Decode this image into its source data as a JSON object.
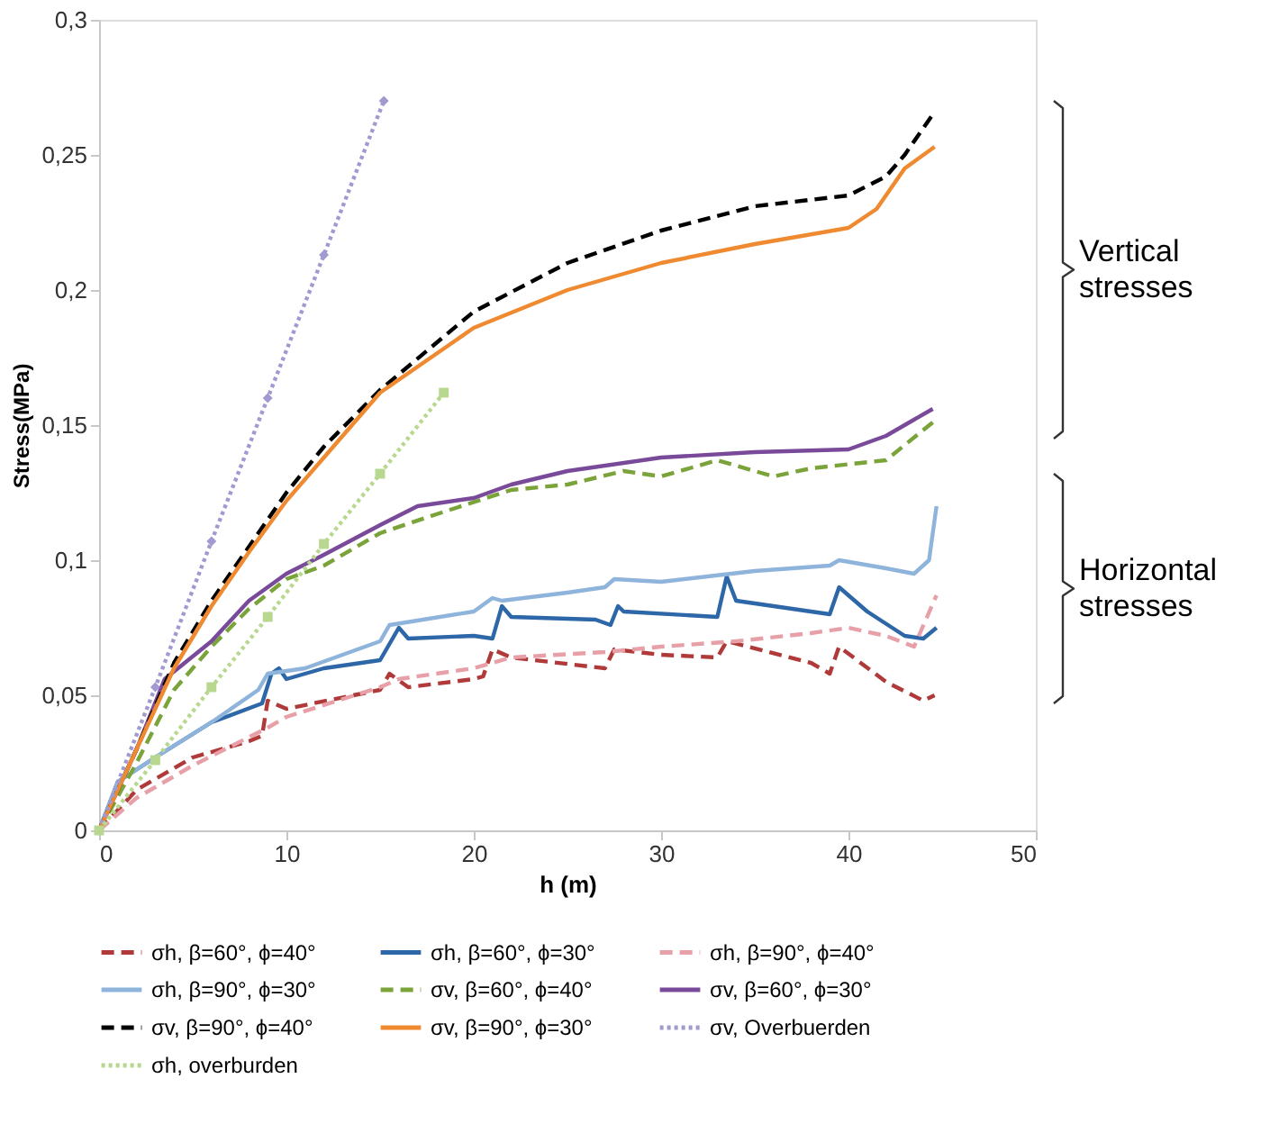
{
  "chart_data": {
    "type": "line",
    "xlabel": "h (m)",
    "ylabel": "Stress(MPa)",
    "xlim": [
      0,
      50
    ],
    "xticks": [
      0,
      10,
      20,
      30,
      40,
      50
    ],
    "ylim": [
      0,
      0.3
    ],
    "yticks": [
      {
        "value": 0,
        "label": "0"
      },
      {
        "value": 0.05,
        "label": "0,05"
      },
      {
        "value": 0.1,
        "label": "0,1"
      },
      {
        "value": 0.15,
        "label": "0,15"
      },
      {
        "value": 0.2,
        "label": "0,2"
      },
      {
        "value": 0.25,
        "label": "0,25"
      },
      {
        "value": 0.3,
        "label": "0,3"
      }
    ],
    "grid": false,
    "legend": "bottom",
    "annotations": [
      "Vertical stresses",
      "Horizontal stresses"
    ],
    "series": [
      {
        "name": "σh, β=60°, ϕ=40°",
        "color": "#b03a3a",
        "line_style": "dashed",
        "x": [
          0,
          2,
          5,
          8,
          8.7,
          9,
          10,
          15,
          15.5,
          16.5,
          20,
          20.5,
          21,
          22,
          27,
          27.5,
          30,
          33,
          33.5,
          38,
          39,
          39.5,
          42,
          44,
          44.6
        ],
        "values": [
          0,
          0.015,
          0.027,
          0.033,
          0.035,
          0.048,
          0.045,
          0.052,
          0.058,
          0.053,
          0.056,
          0.057,
          0.067,
          0.064,
          0.06,
          0.067,
          0.065,
          0.064,
          0.07,
          0.062,
          0.058,
          0.068,
          0.055,
          0.048,
          0.05
        ]
      },
      {
        "name": "σh, β=60°, ϕ=30°",
        "color": "#2e67a8",
        "line_style": "solid",
        "x": [
          0,
          1,
          3,
          6,
          8.7,
          9.2,
          9.6,
          10,
          12,
          15,
          16,
          16.5,
          20,
          21,
          21.5,
          22,
          26.5,
          27.3,
          27.7,
          28,
          33,
          33.5,
          34,
          39,
          39.5,
          41,
          43,
          44,
          44.7
        ],
        "values": [
          0,
          0.018,
          0.027,
          0.04,
          0.047,
          0.058,
          0.06,
          0.056,
          0.06,
          0.063,
          0.075,
          0.071,
          0.072,
          0.071,
          0.083,
          0.079,
          0.078,
          0.076,
          0.083,
          0.081,
          0.079,
          0.094,
          0.085,
          0.08,
          0.09,
          0.081,
          0.072,
          0.071,
          0.075
        ]
      },
      {
        "name": "σh, β=90°, ϕ=40°",
        "color": "#e8a0a8",
        "line_style": "dashed",
        "x": [
          0,
          2,
          5,
          9,
          10,
          15,
          16,
          20,
          22,
          27,
          30,
          34,
          38,
          40,
          42,
          43.5,
          44.7
        ],
        "values": [
          0,
          0.012,
          0.024,
          0.038,
          0.042,
          0.053,
          0.056,
          0.06,
          0.064,
          0.066,
          0.068,
          0.07,
          0.073,
          0.075,
          0.072,
          0.068,
          0.087
        ]
      },
      {
        "name": "σh, β=90°, ϕ=30°",
        "color": "#8fb4dc",
        "line_style": "solid",
        "x": [
          0,
          1,
          3,
          6,
          8.5,
          9,
          11,
          15,
          15.5,
          20,
          21,
          21.5,
          25,
          27,
          27.5,
          30,
          35,
          39,
          39.5,
          42,
          43.5,
          44.3,
          44.7
        ],
        "values": [
          0,
          0.018,
          0.027,
          0.04,
          0.052,
          0.058,
          0.06,
          0.07,
          0.076,
          0.081,
          0.086,
          0.085,
          0.088,
          0.09,
          0.093,
          0.092,
          0.096,
          0.098,
          0.1,
          0.097,
          0.095,
          0.1,
          0.12
        ]
      },
      {
        "name": "σv, β=60°, ϕ=40°",
        "color": "#7aa43a",
        "line_style": "dashed",
        "x": [
          0,
          2,
          4,
          6,
          8,
          10,
          12,
          15,
          18,
          22,
          25,
          28,
          30,
          33,
          36,
          38,
          42,
          44.5
        ],
        "values": [
          0,
          0.025,
          0.052,
          0.068,
          0.082,
          0.093,
          0.098,
          0.11,
          0.117,
          0.126,
          0.128,
          0.133,
          0.131,
          0.137,
          0.131,
          0.134,
          0.137,
          0.151
        ]
      },
      {
        "name": "σv, β=60°, ϕ=30°",
        "color": "#7a4a9a",
        "line_style": "solid",
        "x": [
          0,
          2,
          3.5,
          6,
          8,
          10,
          12,
          15,
          17,
          20,
          22,
          25,
          30,
          35,
          40,
          42,
          44.5
        ],
        "values": [
          0,
          0.03,
          0.056,
          0.07,
          0.085,
          0.095,
          0.102,
          0.113,
          0.12,
          0.123,
          0.128,
          0.133,
          0.138,
          0.14,
          0.141,
          0.146,
          0.156
        ]
      },
      {
        "name": "σv, β=90°, ϕ=40°",
        "color": "#000000",
        "line_style": "dashed",
        "x": [
          0,
          2,
          4,
          6,
          8,
          10,
          12,
          15,
          20,
          25,
          30,
          35,
          40,
          42,
          43,
          44.5
        ],
        "values": [
          0,
          0.03,
          0.062,
          0.085,
          0.105,
          0.125,
          0.142,
          0.163,
          0.192,
          0.21,
          0.222,
          0.231,
          0.235,
          0.242,
          0.25,
          0.265
        ]
      },
      {
        "name": "σv, β=90°, ϕ=30°",
        "color": "#f08a30",
        "line_style": "solid",
        "x": [
          0,
          2,
          4,
          6,
          8,
          10,
          12,
          15,
          20,
          25,
          30,
          35,
          40,
          41.5,
          43,
          44.6
        ],
        "values": [
          0,
          0.03,
          0.06,
          0.083,
          0.103,
          0.122,
          0.138,
          0.162,
          0.186,
          0.2,
          0.21,
          0.217,
          0.223,
          0.23,
          0.245,
          0.253
        ]
      },
      {
        "name": "σv, Overbuerden",
        "color": "#a09ad0",
        "line_style": "dotted",
        "marker": "diamond",
        "x": [
          0,
          3,
          6,
          9,
          12,
          15.2
        ],
        "values": [
          0,
          0.053,
          0.107,
          0.16,
          0.213,
          0.27
        ]
      },
      {
        "name": "σh, overburden",
        "color": "#b8d890",
        "line_style": "dotted",
        "marker": "square",
        "x": [
          0,
          3,
          6,
          9,
          12,
          15,
          18.4
        ],
        "values": [
          0,
          0.026,
          0.053,
          0.079,
          0.106,
          0.132,
          0.162
        ]
      }
    ]
  }
}
